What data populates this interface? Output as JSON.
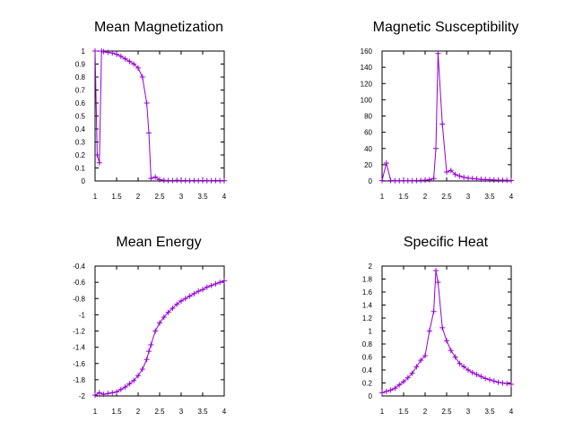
{
  "chart_data": [
    {
      "type": "line",
      "title": "Mean Magnetization",
      "xlabel": "",
      "ylabel": "",
      "xlim": [
        1,
        4
      ],
      "ylim": [
        0,
        1
      ],
      "xticks": [
        1,
        1.5,
        2,
        2.5,
        3,
        3.5,
        4
      ],
      "xtick_labels": [
        "1",
        "1.5",
        "2",
        "2.5",
        "3",
        "3.5",
        "4"
      ],
      "yticks": [
        0,
        0.1,
        0.2,
        0.3,
        0.4,
        0.5,
        0.6,
        0.7,
        0.8,
        0.9,
        1
      ],
      "ytick_labels": [
        "0",
        "0.1",
        "0.2",
        "0.3",
        "0.4",
        "0.5",
        "0.6",
        "0.7",
        "0.8",
        "0.9",
        "1"
      ],
      "color": "#9400d3",
      "x": [
        1.0,
        1.05,
        1.1,
        1.15,
        1.2,
        1.3,
        1.4,
        1.5,
        1.6,
        1.7,
        1.8,
        1.9,
        2.0,
        2.1,
        2.2,
        2.25,
        2.3,
        2.4,
        2.5,
        2.6,
        2.7,
        2.8,
        2.9,
        3.0,
        3.1,
        3.2,
        3.3,
        3.4,
        3.5,
        3.6,
        3.7,
        3.8,
        3.9,
        4.0
      ],
      "y": [
        1.0,
        0.2,
        0.14,
        1.0,
        0.995,
        0.99,
        0.985,
        0.975,
        0.96,
        0.94,
        0.92,
        0.9,
        0.87,
        0.8,
        0.6,
        0.37,
        0.02,
        0.03,
        0.01,
        0.005,
        0.003,
        0.003,
        0.005,
        0.003,
        0.003,
        0.002,
        0.003,
        0.002,
        0.003,
        0.002,
        0.002,
        0.003,
        0.002,
        0.002
      ]
    },
    {
      "type": "line",
      "title": "Magnetic Susceptibility",
      "xlabel": "",
      "ylabel": "",
      "xlim": [
        1,
        4
      ],
      "ylim": [
        0,
        160
      ],
      "xticks": [
        1,
        1.5,
        2,
        2.5,
        3,
        3.5,
        4
      ],
      "xtick_labels": [
        "1",
        "1.5",
        "2",
        "2.5",
        "3",
        "3.5",
        "4"
      ],
      "yticks": [
        0,
        20,
        40,
        60,
        80,
        100,
        120,
        140,
        160
      ],
      "ytick_labels": [
        "0",
        "20",
        "40",
        "60",
        "80",
        "100",
        "120",
        "140",
        "160"
      ],
      "color": "#9400d3",
      "x": [
        1.0,
        1.1,
        1.2,
        1.3,
        1.4,
        1.5,
        1.6,
        1.7,
        1.8,
        1.9,
        2.0,
        2.1,
        2.2,
        2.25,
        2.3,
        2.4,
        2.5,
        2.6,
        2.7,
        2.8,
        2.9,
        3.0,
        3.1,
        3.2,
        3.3,
        3.4,
        3.5,
        3.6,
        3.7,
        3.8,
        3.9,
        4.0
      ],
      "y": [
        0.5,
        22,
        0.5,
        0.3,
        0.3,
        0.3,
        0.3,
        0.3,
        0.5,
        0.7,
        1.0,
        1.5,
        3,
        40,
        157,
        70,
        11,
        13,
        8,
        6,
        4.5,
        3.5,
        3,
        2.5,
        2,
        1.8,
        1.5,
        1.2,
        1.0,
        0.9,
        0.8,
        0.6
      ]
    },
    {
      "type": "line",
      "title": "Mean Energy",
      "xlabel": "",
      "ylabel": "",
      "xlim": [
        1,
        4
      ],
      "ylim": [
        -2,
        -0.4
      ],
      "xticks": [
        1,
        1.5,
        2,
        2.5,
        3,
        3.5,
        4
      ],
      "xtick_labels": [
        "1",
        "1.5",
        "2",
        "2.5",
        "3",
        "3.5",
        "4"
      ],
      "yticks": [
        -2,
        -1.8,
        -1.6,
        -1.4,
        -1.2,
        -1,
        -0.8,
        -0.6,
        -0.4
      ],
      "ytick_labels": [
        "-2",
        "-1.8",
        "-1.6",
        "-1.4",
        "-1.2",
        "-1",
        "-0.8",
        "-0.6",
        "-0.4"
      ],
      "color": "#9400d3",
      "x": [
        1.0,
        1.1,
        1.2,
        1.3,
        1.4,
        1.5,
        1.6,
        1.7,
        1.8,
        1.9,
        2.0,
        2.1,
        2.2,
        2.25,
        2.3,
        2.4,
        2.5,
        2.6,
        2.7,
        2.8,
        2.9,
        3.0,
        3.1,
        3.2,
        3.3,
        3.4,
        3.5,
        3.6,
        3.7,
        3.8,
        3.9,
        4.0
      ],
      "y": [
        -1.99,
        -1.96,
        -1.98,
        -1.97,
        -1.96,
        -1.95,
        -1.92,
        -1.89,
        -1.85,
        -1.81,
        -1.75,
        -1.67,
        -1.55,
        -1.45,
        -1.37,
        -1.2,
        -1.1,
        -1.03,
        -0.97,
        -0.92,
        -0.87,
        -0.83,
        -0.8,
        -0.77,
        -0.74,
        -0.71,
        -0.69,
        -0.66,
        -0.64,
        -0.62,
        -0.6,
        -0.58
      ]
    },
    {
      "type": "line",
      "title": "Specific Heat",
      "xlabel": "",
      "ylabel": "",
      "xlim": [
        1,
        4
      ],
      "ylim": [
        0,
        2
      ],
      "xticks": [
        1,
        1.5,
        2,
        2.5,
        3,
        3.5,
        4
      ],
      "xtick_labels": [
        "1",
        "1.5",
        "2",
        "2.5",
        "3",
        "3.5",
        "4"
      ],
      "yticks": [
        0,
        0.2,
        0.4,
        0.6,
        0.8,
        1,
        1.2,
        1.4,
        1.6,
        1.8,
        2
      ],
      "ytick_labels": [
        "0",
        "0.2",
        "0.4",
        "0.6",
        "0.8",
        "1",
        "1.2",
        "1.4",
        "1.6",
        "1.8",
        "2"
      ],
      "color": "#9400d3",
      "x": [
        1.0,
        1.1,
        1.2,
        1.3,
        1.4,
        1.5,
        1.6,
        1.7,
        1.8,
        1.9,
        2.0,
        2.1,
        2.2,
        2.25,
        2.3,
        2.4,
        2.5,
        2.6,
        2.7,
        2.8,
        2.9,
        3.0,
        3.1,
        3.2,
        3.3,
        3.4,
        3.5,
        3.6,
        3.7,
        3.8,
        3.9,
        4.0
      ],
      "y": [
        0.05,
        0.07,
        0.09,
        0.12,
        0.17,
        0.22,
        0.28,
        0.35,
        0.45,
        0.55,
        0.62,
        1.0,
        1.3,
        1.93,
        1.75,
        1.05,
        0.85,
        0.7,
        0.6,
        0.5,
        0.45,
        0.4,
        0.36,
        0.33,
        0.3,
        0.27,
        0.25,
        0.23,
        0.21,
        0.2,
        0.19,
        0.18
      ]
    }
  ]
}
